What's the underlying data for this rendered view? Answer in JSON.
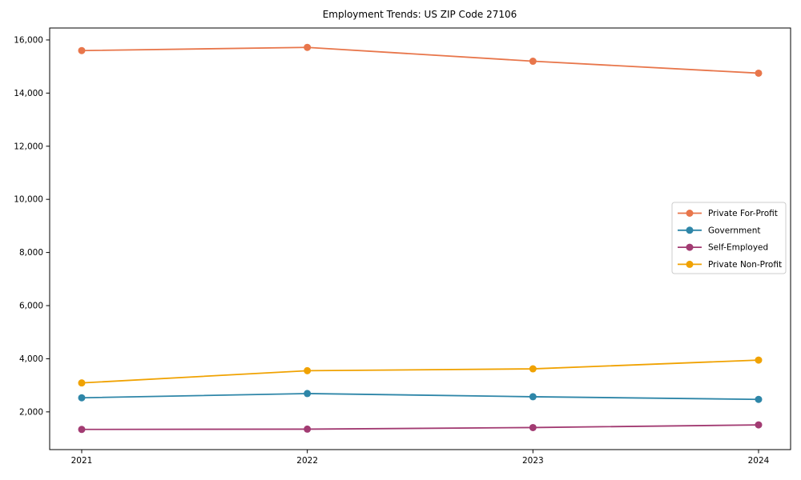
{
  "chart_data": {
    "type": "line",
    "title": "Employment Trends: US ZIP Code 27106",
    "xlabel": "",
    "ylabel": "",
    "x": [
      "2021",
      "2022",
      "2023",
      "2024"
    ],
    "series": [
      {
        "name": "Private For-Profit",
        "color": "#E8764B",
        "values": [
          15600,
          15720,
          15200,
          14750
        ]
      },
      {
        "name": "Government",
        "color": "#2E86A8",
        "values": [
          2530,
          2690,
          2570,
          2470
        ]
      },
      {
        "name": "Self-Employed",
        "color": "#A23B72",
        "values": [
          1340,
          1350,
          1410,
          1510
        ]
      },
      {
        "name": "Private Non-Profit",
        "color": "#F0A202",
        "values": [
          3090,
          3550,
          3620,
          3950
        ]
      }
    ],
    "yticks": [
      2000,
      4000,
      6000,
      8000,
      10000,
      12000,
      14000,
      16000
    ],
    "ylim": [
      580,
      16450
    ],
    "grid": false,
    "legend_position": "center right",
    "marker": "circle",
    "axis_color": "#000000",
    "legend_border_color": "#cccccc",
    "background_color": "#ffffff"
  }
}
